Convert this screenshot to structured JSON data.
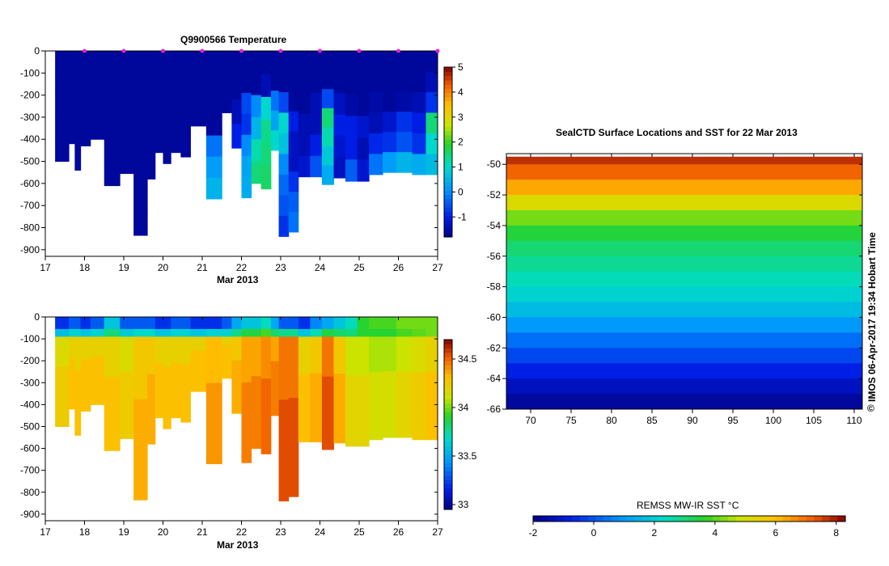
{
  "chart_data": [
    {
      "type": "heatmap",
      "title": "Q9900566  Temperature",
      "xlabel": "Mar 2013",
      "ylabel": "",
      "x_ticks": [
        "17",
        "18",
        "19",
        "20",
        "21",
        "22",
        "23",
        "24",
        "25",
        "26",
        "27"
      ],
      "y_ticks": [
        "0",
        "-100",
        "-200",
        "-300",
        "-400",
        "-500",
        "-600",
        "-700",
        "-800",
        "-900"
      ],
      "xlim": [
        17,
        27
      ],
      "ylim": [
        -930,
        0
      ],
      "colorbar": {
        "ticks": [
          "5",
          "4",
          "3",
          "2",
          "1",
          "0",
          "-1"
        ],
        "min": -1.8,
        "max": 5
      },
      "profile_markers_x": [
        18,
        19,
        20,
        21,
        22,
        23,
        24,
        25,
        26,
        27
      ],
      "profiles": [
        {
          "x": 17.25,
          "w": 0.35,
          "depth": -500,
          "values": [
            -1.6,
            -1.6,
            -1.6,
            -1.6,
            -1.6
          ]
        },
        {
          "x": 17.6,
          "w": 0.15,
          "depth": -420,
          "values": [
            -1.6,
            -1.6,
            -1.6,
            -1.6
          ]
        },
        {
          "x": 17.75,
          "w": 0.15,
          "depth": -540,
          "values": [
            -1.6,
            -1.6,
            -1.6,
            -1.6,
            -1.6
          ]
        },
        {
          "x": 17.9,
          "w": 0.25,
          "depth": -430,
          "values": [
            -1.6,
            -1.6,
            -1.6,
            -1.6
          ]
        },
        {
          "x": 18.15,
          "w": 0.35,
          "depth": -400,
          "values": [
            -1.6,
            -1.6,
            -1.6,
            -1.6
          ]
        },
        {
          "x": 18.5,
          "w": 0.4,
          "depth": -610,
          "values": [
            -1.6,
            -1.6,
            -1.6,
            -1.6,
            -1.6,
            -1.6
          ]
        },
        {
          "x": 18.9,
          "w": 0.35,
          "depth": -555,
          "values": [
            -1.6,
            -1.6,
            -1.6,
            -1.6,
            -1.6
          ]
        },
        {
          "x": 19.25,
          "w": 0.35,
          "depth": -835,
          "values": [
            -1.6,
            -1.6,
            -1.6,
            -1.6,
            -1.6,
            -1.6,
            -1.6,
            -1.6
          ]
        },
        {
          "x": 19.6,
          "w": 0.2,
          "depth": -580,
          "values": [
            -1.6,
            -1.6,
            -1.6,
            -1.6,
            -1.6
          ]
        },
        {
          "x": 19.8,
          "w": 0.2,
          "depth": -460,
          "values": [
            -1.6,
            -1.6,
            -1.6,
            -1.6
          ]
        },
        {
          "x": 20.0,
          "w": 0.2,
          "depth": -510,
          "values": [
            -1.6,
            -1.6,
            -1.6,
            -1.6,
            -1.6
          ]
        },
        {
          "x": 20.2,
          "w": 0.25,
          "depth": -460,
          "values": [
            -1.6,
            -1.6,
            -1.6,
            -1.6
          ]
        },
        {
          "x": 20.45,
          "w": 0.25,
          "depth": -480,
          "values": [
            -1.6,
            -1.6,
            -1.6,
            -1.6
          ]
        },
        {
          "x": 20.7,
          "w": 0.4,
          "depth": -340,
          "values": [
            -1.6,
            -1.6,
            -1.6
          ]
        },
        {
          "x": 21.1,
          "w": 0.4,
          "depth": -670,
          "values": [
            -1.6,
            -1.6,
            -1.6,
            -1.6,
            -0.2,
            0.2,
            0.5
          ]
        },
        {
          "x": 21.5,
          "w": 0.25,
          "depth": -280,
          "values": [
            -1.6,
            -1.6,
            -1.6
          ]
        },
        {
          "x": 21.75,
          "w": 0.25,
          "depth": -440,
          "values": [
            -1.6,
            -1.6,
            -1.4,
            -1.0
          ]
        },
        {
          "x": 22.0,
          "w": 0.25,
          "depth": -665,
          "values": [
            -1.6,
            -1.6,
            -0.6,
            -0.8,
            0.0,
            0.3,
            0.4
          ]
        },
        {
          "x": 22.25,
          "w": 0.25,
          "depth": -600,
          "values": [
            -1.6,
            -1.6,
            0.0,
            0.5,
            1.2,
            1.5
          ]
        },
        {
          "x": 22.5,
          "w": 0.25,
          "depth": -625,
          "values": [
            -1.6,
            -1.4,
            1.0,
            1.4,
            1.5,
            1.6
          ]
        },
        {
          "x": 22.75,
          "w": 0.2,
          "depth": -450,
          "values": [
            -1.6,
            -1.6,
            -0.2,
            0.3,
            1.0
          ]
        },
        {
          "x": 22.95,
          "w": 0.25,
          "depth": -840,
          "values": [
            -1.6,
            -1.6,
            -0.6,
            1.0,
            0.7,
            0.0,
            -0.3,
            -0.5,
            -0.8
          ]
        },
        {
          "x": 23.2,
          "w": 0.25,
          "depth": -820,
          "values": [
            -1.6,
            -1.6,
            -1.6,
            -1.0,
            -1.3,
            -1.3,
            -0.8,
            -0.4,
            -0.2
          ]
        },
        {
          "x": 23.45,
          "w": 0.3,
          "depth": -570,
          "values": [
            -1.6,
            -1.6,
            -1.6,
            -1.4,
            -1.4,
            -1.2
          ]
        },
        {
          "x": 23.75,
          "w": 0.3,
          "depth": -570,
          "values": [
            -1.6,
            -1.6,
            -1.4,
            -1.4,
            -1.0,
            -0.5
          ]
        },
        {
          "x": 24.05,
          "w": 0.3,
          "depth": -605,
          "values": [
            -1.6,
            -1.6,
            -0.6,
            1.5,
            1.2,
            0.8,
            0.4
          ]
        },
        {
          "x": 24.35,
          "w": 0.3,
          "depth": -575,
          "values": [
            -1.6,
            -1.6,
            -1.3,
            -1.0,
            -1.2,
            -1.3
          ]
        },
        {
          "x": 24.65,
          "w": 0.3,
          "depth": -590,
          "values": [
            -1.6,
            -1.6,
            -1.5,
            -1.0,
            -1.0,
            -0.4
          ]
        },
        {
          "x": 24.95,
          "w": 0.3,
          "depth": -590,
          "values": [
            -1.6,
            -1.6,
            -1.6,
            -1.2,
            -1.4,
            -1.2
          ]
        },
        {
          "x": 25.25,
          "w": 0.35,
          "depth": -560,
          "values": [
            -1.6,
            -1.6,
            -1.5,
            -1.4,
            -0.9,
            -0.2
          ]
        },
        {
          "x": 25.6,
          "w": 0.35,
          "depth": -550,
          "values": [
            -1.6,
            -1.6,
            -1.6,
            -1.2,
            -0.8,
            0.2
          ]
        },
        {
          "x": 25.95,
          "w": 0.4,
          "depth": -550,
          "values": [
            -1.6,
            -1.6,
            -1.5,
            -0.8,
            -0.5,
            0.5
          ]
        },
        {
          "x": 26.35,
          "w": 0.35,
          "depth": -560,
          "values": [
            -1.6,
            -1.6,
            -1.4,
            -1.0,
            -0.8,
            0.4
          ]
        },
        {
          "x": 26.7,
          "w": 0.3,
          "depth": -560,
          "values": [
            -1.6,
            -1.4,
            -0.8,
            1.5,
            1.0,
            0.6
          ]
        }
      ]
    },
    {
      "type": "heatmap",
      "title": "",
      "xlabel": "Mar 2013",
      "ylabel": "",
      "x_ticks": [
        "17",
        "18",
        "19",
        "20",
        "21",
        "22",
        "23",
        "24",
        "25",
        "26",
        "27"
      ],
      "y_ticks": [
        "0",
        "-100",
        "-200",
        "-300",
        "-400",
        "-500",
        "-600",
        "-700",
        "-800",
        "-900"
      ],
      "xlim": [
        17,
        27
      ],
      "ylim": [
        -930,
        0
      ],
      "colorbar": {
        "ticks": [
          "34.5",
          "34",
          "33.5",
          "33"
        ],
        "min": 32.95,
        "max": 34.7
      },
      "surface_values": [
        33.2,
        33.3,
        33.3,
        33.2,
        33.3,
        33.6,
        33.3,
        33.3,
        33.3,
        33.2,
        33.2,
        33.3,
        33.3,
        33.2,
        33.2,
        33.3,
        33.5,
        33.6,
        33.6,
        33.7,
        33.5,
        33.3,
        33.3,
        33.2,
        33.4,
        33.5,
        33.6,
        33.7,
        33.9,
        33.95,
        33.95,
        34.0,
        34.0,
        34.0
      ],
      "interior_values": [
        34.25,
        34.3,
        34.3,
        34.3,
        34.3,
        34.3,
        34.25,
        34.35,
        34.35,
        34.3,
        34.3,
        34.3,
        34.3,
        34.3,
        34.4,
        34.3,
        34.35,
        34.45,
        34.45,
        34.5,
        34.45,
        34.55,
        34.55,
        34.3,
        34.35,
        34.55,
        34.35,
        34.2,
        34.2,
        34.15,
        34.15,
        34.2,
        34.25,
        34.3
      ]
    },
    {
      "type": "heatmap",
      "title": "SealCTD Surface Locations and SST for 22 Mar 2013",
      "xlabel": "",
      "ylabel": "",
      "x_ticks": [
        "70",
        "75",
        "80",
        "85",
        "90",
        "95",
        "100",
        "105",
        "110"
      ],
      "y_ticks": [
        "-50",
        "-52",
        "-54",
        "-56",
        "-58",
        "-60",
        "-62",
        "-64",
        "-66"
      ],
      "xlim": [
        67,
        111
      ],
      "ylim": [
        -66,
        -49.3
      ],
      "colorbar": {
        "title": "REMSS MW-IR SST °C",
        "ticks": [
          "-2",
          "0",
          "2",
          "4",
          "6",
          "8"
        ],
        "min": -2,
        "max": 8.3
      },
      "sst_by_latitude": [
        [
          -49.5,
          8.0
        ],
        [
          -50,
          7.5
        ],
        [
          -51,
          6.8
        ],
        [
          -52,
          5.8
        ],
        [
          -53,
          4.6
        ],
        [
          -54,
          3.8
        ],
        [
          -55,
          3.2
        ],
        [
          -56,
          2.9
        ],
        [
          -57,
          2.6
        ],
        [
          -58,
          2.3
        ],
        [
          -59,
          2.0
        ],
        [
          -60,
          1.3
        ],
        [
          -61,
          0.6
        ],
        [
          -62,
          0.1
        ],
        [
          -63,
          -0.5
        ],
        [
          -64,
          -1.0
        ],
        [
          -65,
          -1.5
        ],
        [
          -66,
          -1.8
        ]
      ]
    }
  ],
  "footer_stamp": "IMOS 06-Apr-2017 19:34 Hobart Time",
  "copyright_glyph": "©"
}
